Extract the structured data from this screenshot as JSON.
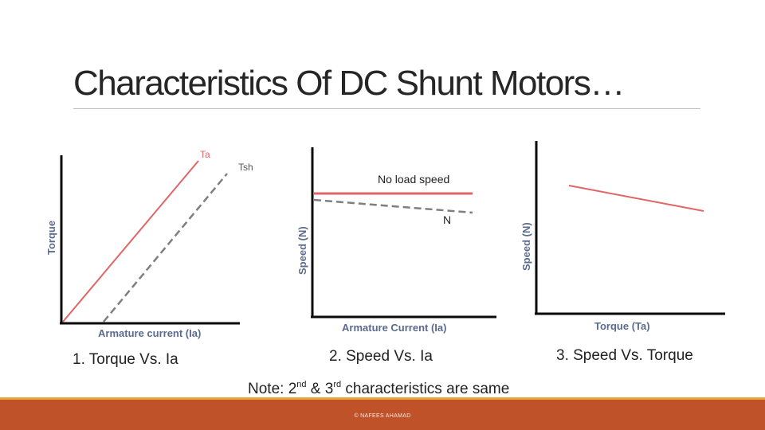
{
  "title": "Characteristics Of DC Shunt Motors…",
  "graph1": {
    "y_axis_label": "Torque",
    "x_axis_label": "Armature current (Ia)",
    "curves": [
      {
        "label": "Ta",
        "style": "solid",
        "color": "#e06666"
      },
      {
        "label": "Tsh",
        "style": "dashed",
        "color": "#7f7f7f"
      }
    ],
    "caption": "1. Torque Vs. Ia"
  },
  "graph2": {
    "y_axis_label": "Speed (N)",
    "x_axis_label": "Armature Current (Ia)",
    "no_load_label": "No load speed",
    "curve_label": "N",
    "caption": "2. Speed Vs. Ia"
  },
  "graph3": {
    "y_axis_label": "Speed (N)",
    "x_axis_label": "Torque (Ta)",
    "caption": "3. Speed Vs. Torque"
  },
  "note": {
    "prefix": "Note: 2",
    "sup1": "nd",
    "middle": " & 3",
    "sup2": "rd",
    "suffix": " characteristics are same"
  },
  "footer": {
    "text": "© NAFEES AHAMAD"
  },
  "colors": {
    "red_curve": "#e06666",
    "axis": "#0a0a0a",
    "footer": "#c0522a",
    "footer_accent": "#e8a23a"
  }
}
